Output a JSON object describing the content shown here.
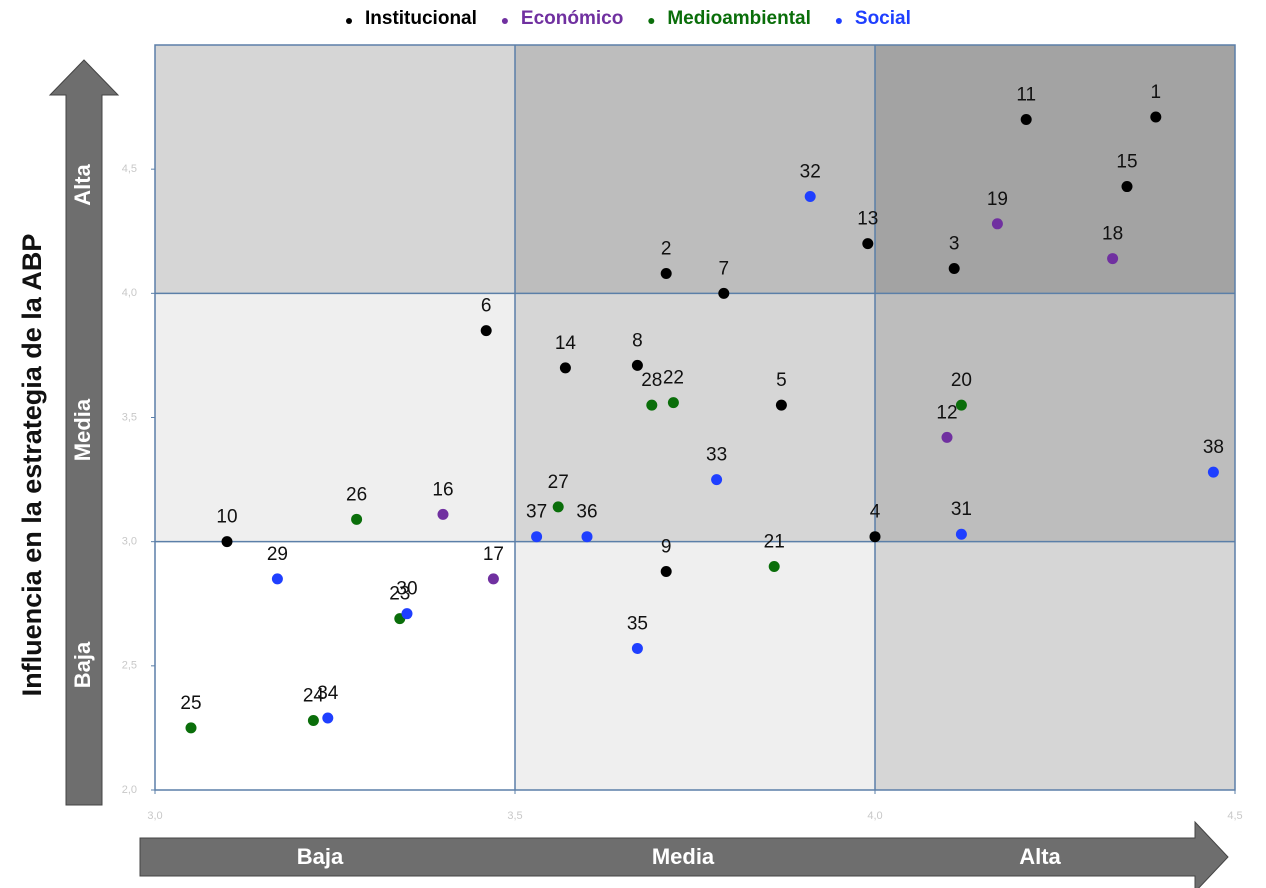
{
  "chart_data": {
    "type": "scatter",
    "ylabel": "Influencia en la estrategia de la ABP",
    "x_levels": [
      "Baja",
      "Media",
      "Alta"
    ],
    "y_levels": [
      "Baja",
      "Media",
      "Alta"
    ],
    "xlim": [
      3.0,
      4.5
    ],
    "ylim": [
      2.0,
      5.0
    ],
    "xticks": [
      {
        "value": 3.0,
        "label": "3,0"
      },
      {
        "value": 3.5,
        "label": "3,5"
      },
      {
        "value": 4.0,
        "label": "4,0"
      },
      {
        "value": 4.5,
        "label": "4,5"
      }
    ],
    "yticks": [
      {
        "value": 2.0,
        "label": "2,0"
      },
      {
        "value": 2.5,
        "label": "2,5"
      },
      {
        "value": 3.0,
        "label": "3,0"
      },
      {
        "value": 3.5,
        "label": "3,5"
      },
      {
        "value": 4.0,
        "label": "4,0"
      },
      {
        "value": 4.5,
        "label": "4,5"
      }
    ],
    "legend": "top",
    "series": [
      {
        "name": "Institucional",
        "color": "#000000",
        "labels": [
          "1",
          "11",
          "15",
          "3",
          "13",
          "2",
          "7",
          "6",
          "14",
          "8",
          "5",
          "4",
          "9",
          "10"
        ],
        "x": [
          4.39,
          4.21,
          4.35,
          4.11,
          3.99,
          3.71,
          3.79,
          3.46,
          3.57,
          3.67,
          3.87,
          4.0,
          3.71,
          3.1
        ],
        "values": [
          4.71,
          4.7,
          4.43,
          4.1,
          4.2,
          4.08,
          4.0,
          3.85,
          3.7,
          3.71,
          3.55,
          3.02,
          2.88,
          3.0
        ]
      },
      {
        "name": "Económico",
        "color": "#7030a0",
        "labels": [
          "19",
          "18",
          "12",
          "16",
          "17"
        ],
        "x": [
          4.17,
          4.33,
          4.1,
          3.4,
          3.47
        ],
        "values": [
          4.28,
          4.14,
          3.42,
          3.11,
          2.85
        ]
      },
      {
        "name": "Medioambiental",
        "color": "#0a6e0a",
        "labels": [
          "28",
          "22",
          "20",
          "27",
          "21",
          "26",
          "23",
          "25",
          "24"
        ],
        "x": [
          3.69,
          3.72,
          4.12,
          3.56,
          3.86,
          3.28,
          3.34,
          3.05,
          3.22
        ],
        "values": [
          3.55,
          3.56,
          3.55,
          3.14,
          2.9,
          3.09,
          2.69,
          2.25,
          2.28
        ]
      },
      {
        "name": "Social",
        "color": "#1f3fff",
        "labels": [
          "32",
          "38",
          "33",
          "37",
          "36",
          "31",
          "29",
          "30",
          "35",
          "34"
        ],
        "x": [
          3.91,
          4.47,
          3.78,
          3.53,
          3.6,
          4.12,
          3.17,
          3.35,
          3.67,
          3.24
        ],
        "values": [
          4.39,
          3.28,
          3.25,
          3.02,
          3.02,
          3.03,
          2.85,
          2.71,
          2.57,
          2.29
        ]
      }
    ]
  }
}
